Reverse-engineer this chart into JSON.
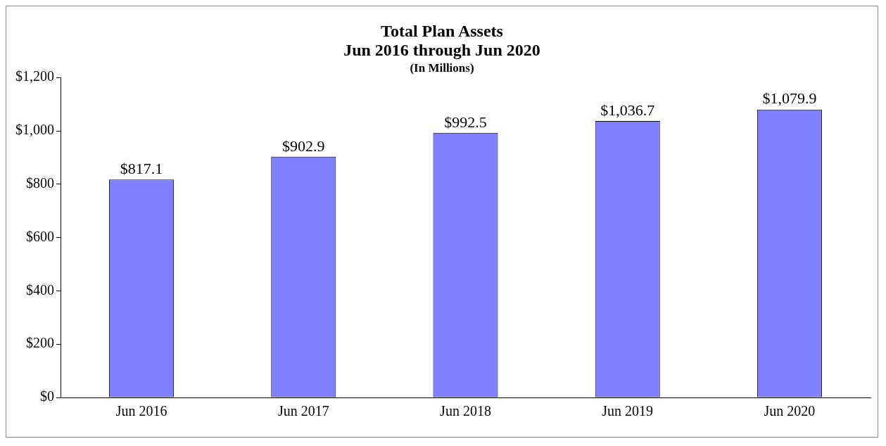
{
  "chart_data": {
    "type": "bar",
    "title": "Total Plan Assets\nJun 2016 through Jun 2020",
    "subtitle": "(In Millions)",
    "categories": [
      "Jun 2016",
      "Jun 2017",
      "Jun 2018",
      "Jun 2019",
      "Jun 2020"
    ],
    "values": [
      817.1,
      902.9,
      992.5,
      1036.7,
      1079.9
    ],
    "color": "#8080ff",
    "value_labels": [
      "$817.1",
      "$902.9",
      "$992.5",
      "$1,036.7",
      "$1,079.9"
    ],
    "ylim": [
      0,
      1200
    ],
    "yticks": [
      {
        "value": 0,
        "label": "$0"
      },
      {
        "value": 200,
        "label": "$200"
      },
      {
        "value": 400,
        "label": "$400"
      },
      {
        "value": 600,
        "label": "$600"
      },
      {
        "value": 800,
        "label": "$800"
      },
      {
        "value": 1000,
        "label": "$1,000"
      },
      {
        "value": 1200,
        "label": "$1,200"
      }
    ],
    "grid": false,
    "legend": false
  }
}
